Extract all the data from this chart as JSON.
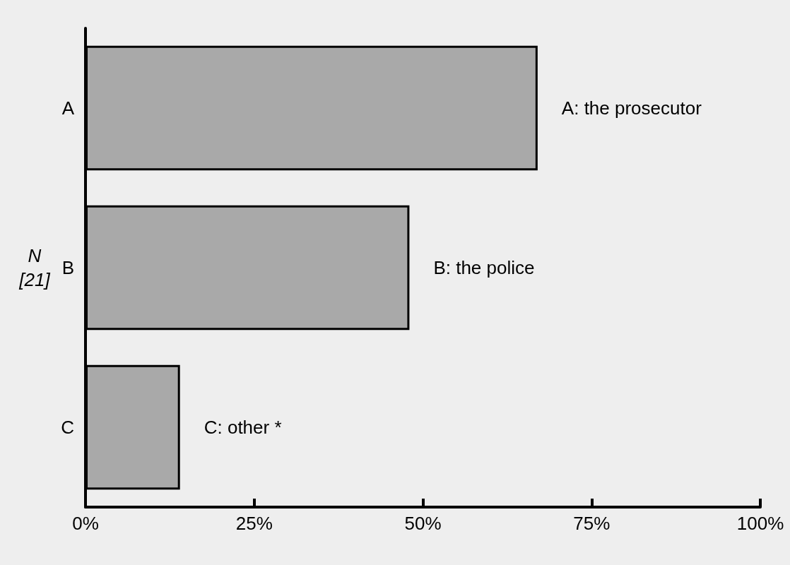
{
  "chart_data": {
    "type": "bar",
    "orientation": "horizontal",
    "ylabel": "N [21]",
    "categories": [
      "A",
      "B",
      "C"
    ],
    "values": [
      67,
      48,
      14
    ],
    "color": "#a9a9a9",
    "xlim": [
      0,
      100
    ],
    "xticks": [
      {
        "value": 0,
        "label": "0%"
      },
      {
        "value": 25,
        "label": "25%"
      },
      {
        "value": 50,
        "label": "50%"
      },
      {
        "value": 75,
        "label": "75%"
      },
      {
        "value": 100,
        "label": "100%"
      }
    ],
    "annotations": [
      {
        "text": "A: the prosecutor",
        "x": 67,
        "y": "A"
      },
      {
        "text": "B: the police",
        "x": 48,
        "y": "B"
      },
      {
        "text": "C: other *",
        "x": 14,
        "y": "C"
      }
    ],
    "grid": false
  }
}
